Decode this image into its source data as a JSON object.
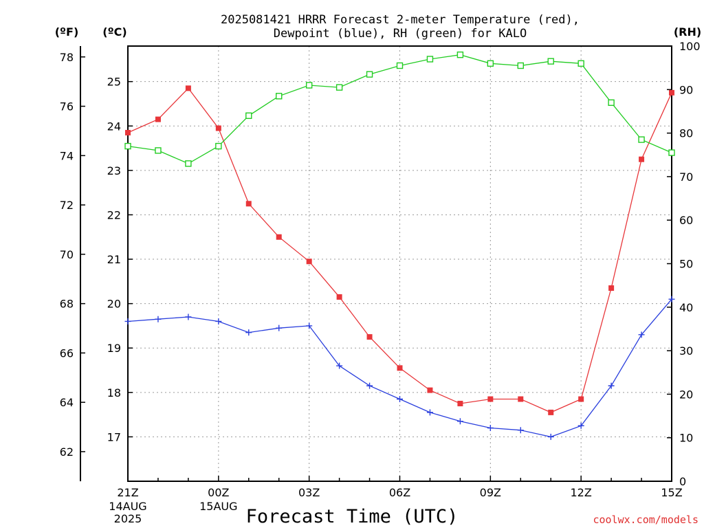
{
  "chart_data": {
    "type": "line",
    "title": "2025081421 HRRR Forecast 2-meter Temperature (red),",
    "subtitle": "Dewpoint (blue), RH (green) for KALO",
    "xlabel": "Forecast Time (UTC)",
    "credit": "coolwx.com/models",
    "units": {
      "f": "(ºF)",
      "c": "(ºC)",
      "rh": "(RH)"
    },
    "x": [
      "21Z",
      "22Z",
      "23Z",
      "00Z",
      "01Z",
      "02Z",
      "03Z",
      "04Z",
      "05Z",
      "06Z",
      "07Z",
      "08Z",
      "09Z",
      "10Z",
      "11Z",
      "12Z",
      "13Z",
      "14Z",
      "15Z"
    ],
    "x_ticks": [
      {
        "label": "21Z",
        "sub": [
          "14AUG",
          "2025"
        ]
      },
      {
        "label": "00Z",
        "sub": [
          "15AUG"
        ]
      },
      {
        "label": "03Z",
        "sub": []
      },
      {
        "label": "06Z",
        "sub": []
      },
      {
        "label": "09Z",
        "sub": []
      },
      {
        "label": "12Z",
        "sub": []
      },
      {
        "label": "15Z",
        "sub": []
      }
    ],
    "y_left_outer": {
      "label": "(ºF)",
      "ticks": [
        62,
        64,
        66,
        68,
        70,
        72,
        74,
        76,
        78
      ]
    },
    "y_left_inner": {
      "label": "(ºC)",
      "ylim": [
        16.0,
        25.8
      ],
      "ticks": [
        17,
        18,
        19,
        20,
        21,
        22,
        23,
        24,
        25
      ]
    },
    "y_right": {
      "label": "(RH)",
      "ylim": [
        0,
        100
      ],
      "ticks": [
        0,
        10,
        20,
        30,
        40,
        50,
        60,
        70,
        80,
        90,
        100
      ]
    },
    "grid": true,
    "series": [
      {
        "name": "Temperature",
        "axis": "c",
        "color": "#e8363a",
        "marker": "filled-square",
        "values": [
          23.85,
          24.15,
          24.85,
          23.95,
          22.25,
          21.5,
          20.95,
          20.15,
          19.25,
          18.55,
          18.05,
          17.75,
          17.85,
          17.85,
          17.55,
          17.85,
          20.35,
          23.25,
          24.75
        ]
      },
      {
        "name": "Dewpoint",
        "axis": "c",
        "color": "#2a3fdd",
        "marker": "plus",
        "values": [
          19.6,
          19.65,
          19.7,
          19.6,
          19.35,
          19.45,
          19.5,
          18.6,
          18.15,
          17.85,
          17.55,
          17.35,
          17.2,
          17.15,
          17.0,
          17.25,
          18.15,
          19.3,
          20.1
        ]
      },
      {
        "name": "RH",
        "axis": "rh",
        "color": "#22cc22",
        "marker": "open-square",
        "values": [
          77,
          76,
          73,
          77,
          84,
          88.5,
          91,
          90.5,
          93.5,
          95.5,
          97,
          98,
          96,
          95.5,
          96.5,
          96,
          87,
          78.5,
          75.5
        ]
      }
    ]
  }
}
